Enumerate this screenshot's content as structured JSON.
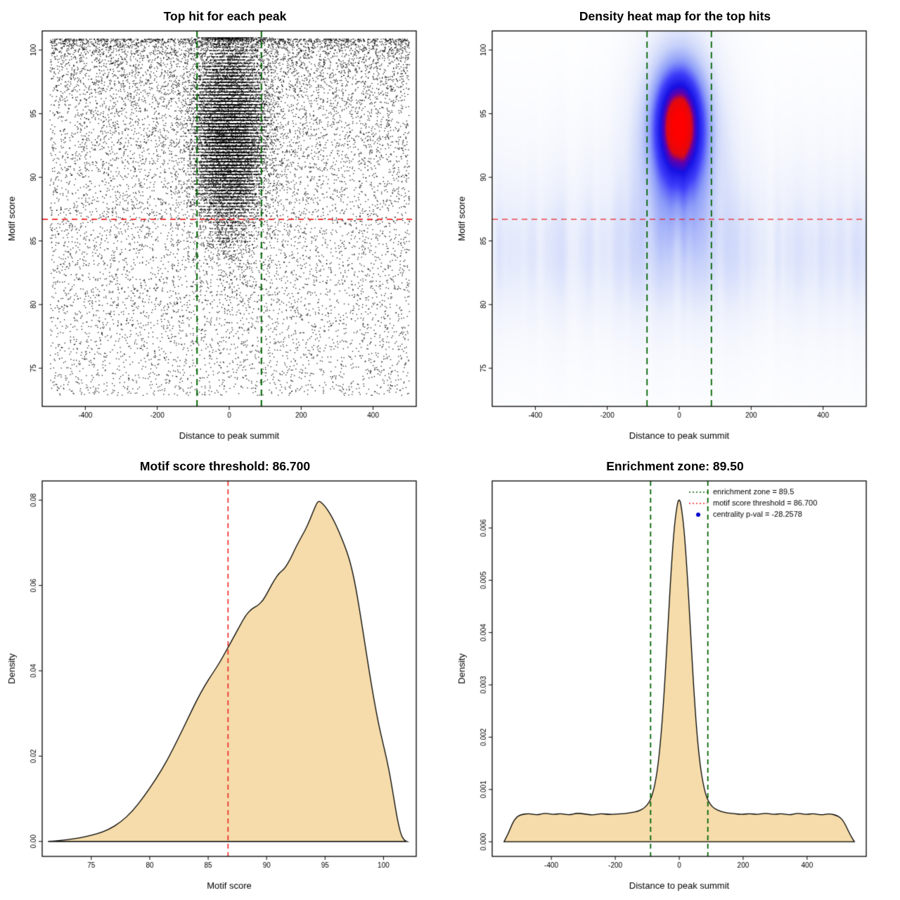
{
  "colors": {
    "threshold_red": "#ee2222",
    "zone_green": "#006400",
    "density_fill": "#f5dcaa",
    "curve_stroke": "#000000",
    "point_black": "#000000",
    "legend_dot_blue": "#0000cc",
    "background": "#ffffff"
  },
  "chart_data": [
    {
      "id": "scatter",
      "type": "scatter",
      "title": "Top hit for each peak",
      "xlabel": "Distance to peak summit",
      "ylabel": "Motif score",
      "xlim": [
        -520,
        520
      ],
      "ylim": [
        72,
        101.5
      ],
      "xticks": [
        -400,
        -200,
        0,
        200,
        400
      ],
      "yticks": [
        75,
        80,
        85,
        90,
        95,
        100
      ],
      "motif_score_threshold": 86.7,
      "enrichment_zone": [
        -89.5,
        89.5
      ],
      "points_model": {
        "seed": 42,
        "background": {
          "n": 12000,
          "x_min": -500,
          "x_max": 500,
          "y_top": 100.9,
          "y_range": 28,
          "y_exp": 1.7
        },
        "cluster_quantized": {
          "n": 13000,
          "x_sigma": 46,
          "x_clip": 260,
          "y_mean": 93.6,
          "y_sigma": 3.4,
          "y_min": 79,
          "y_max": 100.9,
          "y_step": 0.25
        },
        "cluster_smooth": {
          "n": 3000,
          "x_sigma": 50,
          "x_clip": 260,
          "y_mean": 92.5,
          "y_sigma": 4.5,
          "y_min": 78,
          "y_max": 100.9
        }
      }
    },
    {
      "id": "heatmap",
      "type": "heatmap",
      "title": "Density heat map for the top hits",
      "xlabel": "Distance to peak summit",
      "ylabel": "Motif score",
      "xlim": [
        -520,
        520
      ],
      "ylim": [
        72,
        101.5
      ],
      "xticks": [
        -400,
        -200,
        0,
        200,
        400
      ],
      "yticks": [
        75,
        80,
        85,
        90,
        95,
        100
      ],
      "motif_score_threshold": 86.7,
      "enrichment_zone": [
        -89.5,
        89.5
      ],
      "density_model": {
        "seed": 7,
        "norm": 1.83,
        "blob": [
          {
            "amp": 1.0,
            "x0": 0,
            "sx": 48,
            "y0": 94.3,
            "sy": 3.0
          },
          {
            "amp": 0.55,
            "x0": 0,
            "sx": 62,
            "y0": 93.5,
            "sy": 4.5
          },
          {
            "amp": 0.3,
            "x0": 0,
            "sx": 95,
            "y0": 92.5,
            "sy": 7.0
          }
        ],
        "band": [
          {
            "amp": 0.17,
            "y0": 84.0,
            "sy": 3.5
          },
          {
            "amp": 0.1,
            "y0": 87.5,
            "sy": 6.5
          },
          {
            "amp": 0.05,
            "y0": 80.5,
            "sy": 8.0
          }
        ],
        "color_stops": [
          [
            0.0,
            [
              255,
              255,
              255
            ]
          ],
          [
            0.12,
            [
              236,
              240,
              252
            ]
          ],
          [
            0.25,
            [
              201,
              211,
              250
            ]
          ],
          [
            0.4,
            [
              140,
              156,
              248
            ]
          ],
          [
            0.55,
            [
              62,
              62,
              250
            ]
          ],
          [
            0.7,
            [
              22,
              16,
              228
            ]
          ],
          [
            0.8,
            [
              100,
              0,
              170
            ]
          ],
          [
            0.87,
            [
              225,
              10,
              15
            ]
          ],
          [
            1.0,
            [
              255,
              0,
              0
            ]
          ]
        ]
      }
    },
    {
      "id": "score_density",
      "type": "area",
      "title": "Motif score threshold: 86.700",
      "xlabel": "Motif score",
      "ylabel": "Density",
      "xlim": [
        70.8,
        102.8
      ],
      "ylim": [
        -0.0035,
        0.0845
      ],
      "xticks": [
        75,
        80,
        85,
        90,
        95,
        100
      ],
      "yticks": [
        0,
        0.02,
        0.04,
        0.06,
        0.08
      ],
      "ytick_labels": [
        "0.00",
        "0.02",
        "0.04",
        "0.06",
        "0.08"
      ],
      "threshold_x": 86.7,
      "points": [
        [
          71.3,
          0
        ],
        [
          72.5,
          0.0003
        ],
        [
          73.5,
          0.0006
        ],
        [
          74.5,
          0.0011
        ],
        [
          75.5,
          0.0018
        ],
        [
          76.5,
          0.0028
        ],
        [
          77.5,
          0.0045
        ],
        [
          78.5,
          0.007
        ],
        [
          79.5,
          0.0105
        ],
        [
          80.5,
          0.0145
        ],
        [
          81.5,
          0.019
        ],
        [
          82.5,
          0.0245
        ],
        [
          83.3,
          0.029
        ],
        [
          84,
          0.033
        ],
        [
          84.7,
          0.0365
        ],
        [
          85.4,
          0.0395
        ],
        [
          86,
          0.042
        ],
        [
          86.7,
          0.0455
        ],
        [
          87.2,
          0.048
        ],
        [
          87.7,
          0.0505
        ],
        [
          88.2,
          0.053
        ],
        [
          88.7,
          0.0545
        ],
        [
          89.2,
          0.0552
        ],
        [
          89.7,
          0.0565
        ],
        [
          90.2,
          0.059
        ],
        [
          90.7,
          0.0615
        ],
        [
          91.1,
          0.063
        ],
        [
          91.5,
          0.0638
        ],
        [
          92,
          0.066
        ],
        [
          92.5,
          0.069
        ],
        [
          93,
          0.0715
        ],
        [
          93.5,
          0.074
        ],
        [
          94,
          0.0775
        ],
        [
          94.4,
          0.08
        ],
        [
          94.8,
          0.0792
        ],
        [
          95.2,
          0.0778
        ],
        [
          95.6,
          0.076
        ],
        [
          96,
          0.0738
        ],
        [
          96.4,
          0.0712
        ],
        [
          96.8,
          0.0685
        ],
        [
          97.2,
          0.065
        ],
        [
          97.6,
          0.06
        ],
        [
          98,
          0.0535
        ],
        [
          98.4,
          0.0465
        ],
        [
          98.8,
          0.0395
        ],
        [
          99.2,
          0.033
        ],
        [
          99.6,
          0.0272
        ],
        [
          100,
          0.0225
        ],
        [
          100.3,
          0.019
        ],
        [
          100.6,
          0.0148
        ],
        [
          100.9,
          0.0098
        ],
        [
          101.2,
          0.005
        ],
        [
          101.5,
          0.0015
        ],
        [
          101.8,
          0.0002
        ],
        [
          102,
          0
        ]
      ]
    },
    {
      "id": "position_density",
      "type": "area",
      "title": "Enrichment zone: 89.50",
      "xlabel": "Distance to peak summit",
      "ylabel": "Density",
      "xlim": [
        -585,
        585
      ],
      "ylim": [
        -0.00028,
        0.0069
      ],
      "xticks": [
        -400,
        -200,
        0,
        200,
        400
      ],
      "yticks": [
        0,
        0.001,
        0.002,
        0.003,
        0.004,
        0.005,
        0.006
      ],
      "ytick_labels": [
        "0.000",
        "0.001",
        "0.002",
        "0.003",
        "0.004",
        "0.005",
        "0.006"
      ],
      "zone": [
        -89.5,
        89.5
      ],
      "legend": [
        {
          "marker": "line",
          "color": "#006400",
          "label": "enrichment zone = 89.5"
        },
        {
          "marker": "line",
          "color": "#ee2222",
          "label": "motif score threshold = 86.700"
        },
        {
          "marker": "dot",
          "color": "#0000cc",
          "label": "centrality p-val = -28.2578"
        }
      ],
      "points": [
        [
          -548,
          0
        ],
        [
          -535,
          0.00015
        ],
        [
          -522,
          0.00035
        ],
        [
          -510,
          0.00047
        ],
        [
          -495,
          0.00052
        ],
        [
          -470,
          0.00054
        ],
        [
          -445,
          0.00051
        ],
        [
          -420,
          0.00055
        ],
        [
          -395,
          0.00052
        ],
        [
          -370,
          0.00054
        ],
        [
          -345,
          0.00051
        ],
        [
          -320,
          0.00055
        ],
        [
          -295,
          0.00053
        ],
        [
          -270,
          0.00051
        ],
        [
          -245,
          0.00054
        ],
        [
          -220,
          0.00052
        ],
        [
          -195,
          0.00053
        ],
        [
          -170,
          0.00054
        ],
        [
          -150,
          0.00056
        ],
        [
          -130,
          0.00058
        ],
        [
          -110,
          0.00064
        ],
        [
          -95,
          0.00074
        ],
        [
          -85,
          0.00088
        ],
        [
          -75,
          0.00112
        ],
        [
          -65,
          0.00152
        ],
        [
          -55,
          0.00215
        ],
        [
          -45,
          0.00305
        ],
        [
          -35,
          0.00415
        ],
        [
          -25,
          0.00523
        ],
        [
          -15,
          0.00607
        ],
        [
          -5,
          0.0065
        ],
        [
          0,
          0.00655
        ],
        [
          5,
          0.00648
        ],
        [
          15,
          0.00601
        ],
        [
          25,
          0.00515
        ],
        [
          35,
          0.00407
        ],
        [
          45,
          0.00297
        ],
        [
          55,
          0.00209
        ],
        [
          65,
          0.00148
        ],
        [
          75,
          0.0011
        ],
        [
          85,
          0.00086
        ],
        [
          95,
          0.00073
        ],
        [
          110,
          0.00063
        ],
        [
          130,
          0.00058
        ],
        [
          150,
          0.00055
        ],
        [
          170,
          0.00054
        ],
        [
          195,
          0.00052
        ],
        [
          220,
          0.00054
        ],
        [
          245,
          0.00052
        ],
        [
          270,
          0.00055
        ],
        [
          295,
          0.00052
        ],
        [
          320,
          0.00054
        ],
        [
          345,
          0.00051
        ],
        [
          370,
          0.00055
        ],
        [
          395,
          0.00052
        ],
        [
          420,
          0.00054
        ],
        [
          445,
          0.00051
        ],
        [
          470,
          0.00054
        ],
        [
          495,
          0.0005
        ],
        [
          510,
          0.00043
        ],
        [
          522,
          0.0003
        ],
        [
          535,
          0.00013
        ],
        [
          548,
          0
        ]
      ]
    }
  ]
}
